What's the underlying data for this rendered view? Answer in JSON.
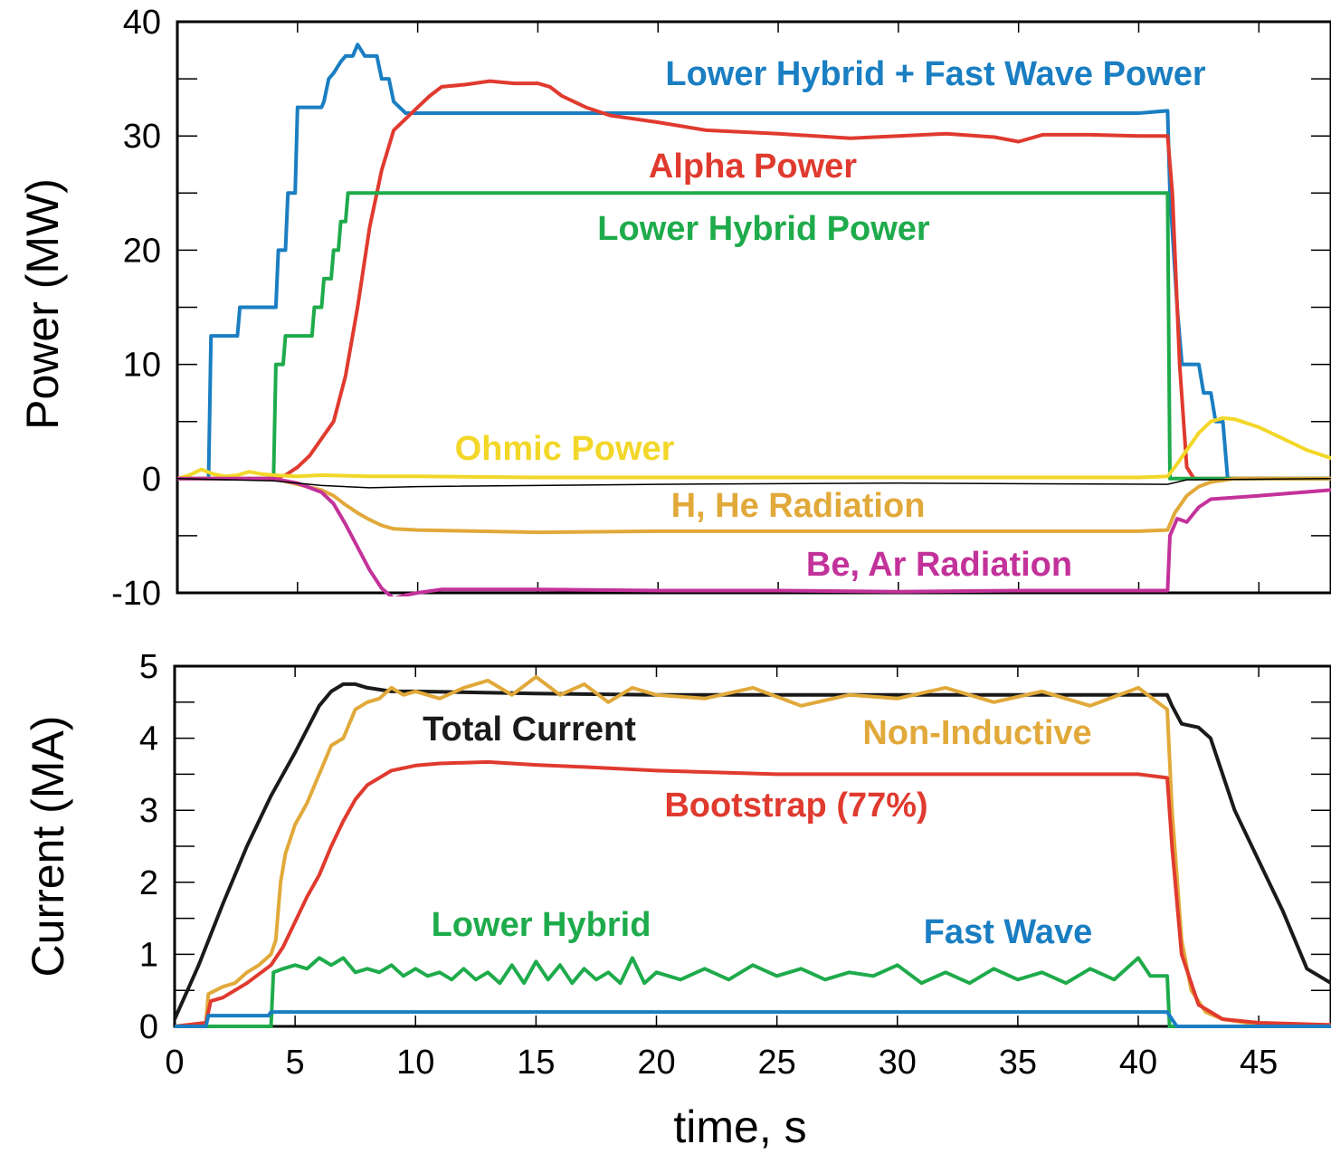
{
  "chart_data": [
    {
      "type": "line",
      "title": "",
      "xlabel": "",
      "ylabel": "Power (MW)",
      "xlim": [
        0,
        48
      ],
      "ylim": [
        -10,
        40
      ],
      "xticks": [
        0,
        5,
        10,
        15,
        20,
        25,
        30,
        35,
        40,
        45
      ],
      "yticks": [
        -10,
        0,
        10,
        20,
        30,
        40
      ],
      "grid": false,
      "series": [
        {
          "name": "Lower Hybrid + Fast Wave Power",
          "color": "#1a7ec2",
          "x": [
            0,
            1.3,
            1.4,
            2.5,
            2.6,
            4.1,
            4.2,
            4.5,
            4.6,
            4.9,
            5.0,
            6.0,
            6.1,
            6.3,
            6.5,
            6.8,
            7.0,
            7.3,
            7.5,
            7.8,
            8.0,
            8.3,
            8.5,
            8.8,
            9.0,
            9.5,
            10.0,
            15,
            20,
            25,
            30,
            35,
            40,
            41.2,
            41.3,
            41.6,
            41.8,
            42.0,
            42.5,
            42.7,
            43.0,
            43.2,
            43.5,
            43.7,
            48
          ],
          "y": [
            0,
            0,
            12.5,
            12.5,
            15,
            15,
            20,
            20,
            25,
            25,
            32.5,
            32.5,
            33,
            35,
            35.5,
            36.5,
            37,
            37,
            38,
            37,
            37,
            37,
            35,
            35,
            33,
            32,
            32,
            32,
            32,
            32,
            32,
            32,
            32,
            32.2,
            25,
            15,
            10,
            10,
            10,
            7.5,
            7.5,
            5,
            5,
            0,
            0
          ]
        },
        {
          "name": "Alpha Power",
          "color": "#e03a2f",
          "x": [
            0,
            4,
            4.5,
            5,
            5.5,
            6,
            6.5,
            7,
            7.5,
            8,
            8.5,
            9,
            9.5,
            10,
            10.5,
            11,
            12,
            13,
            14,
            15,
            15.5,
            16,
            17,
            18,
            20,
            22,
            25,
            28,
            30,
            32,
            34,
            35,
            36,
            38,
            40,
            41.2,
            41.4,
            41.7,
            42,
            42.3,
            42.6,
            48
          ],
          "y": [
            0,
            0,
            0.3,
            1,
            2,
            3.5,
            5,
            9,
            15,
            22,
            27,
            30.5,
            31.5,
            32.5,
            33.5,
            34.3,
            34.5,
            34.8,
            34.6,
            34.6,
            34.3,
            33.5,
            32.5,
            31.8,
            31.2,
            30.5,
            30.2,
            29.8,
            30,
            30.2,
            29.9,
            29.5,
            30.1,
            30.1,
            30,
            30,
            25,
            10,
            1,
            0,
            0,
            0
          ]
        },
        {
          "name": "Lower Hybrid Power",
          "color": "#1eab4b",
          "x": [
            0,
            4.0,
            4.1,
            4.4,
            4.5,
            4.9,
            5.0,
            5.6,
            5.7,
            6.0,
            6.1,
            6.4,
            6.5,
            6.7,
            6.8,
            7.0,
            7.1,
            7.4,
            7.5,
            41.2,
            41.3,
            48
          ],
          "y": [
            0,
            0,
            10,
            10,
            12.5,
            12.5,
            12.5,
            12.5,
            15,
            15,
            17.5,
            17.5,
            20,
            20,
            22.5,
            22.5,
            25,
            25,
            25,
            25,
            0,
            0
          ]
        },
        {
          "name": "Ohmic Power",
          "color": "#f3d728",
          "x": [
            0,
            0.5,
            1,
            1.5,
            2,
            2.5,
            3,
            3.5,
            4,
            5,
            6,
            8,
            10,
            15,
            20,
            25,
            30,
            35,
            40,
            41.2,
            41.5,
            42,
            42.5,
            43,
            43.5,
            44,
            45,
            46,
            47,
            48
          ],
          "y": [
            0,
            0.3,
            0.8,
            0.4,
            0.2,
            0.3,
            0.6,
            0.4,
            0.3,
            0.2,
            0.3,
            0.2,
            0.2,
            0.1,
            0.1,
            0.1,
            0.1,
            0.1,
            0.1,
            0.2,
            1,
            2.5,
            4,
            5,
            5.3,
            5.2,
            4.5,
            3.5,
            2.5,
            1.8
          ]
        },
        {
          "name": "H, He Radiation",
          "color": "#e1a93a",
          "x": [
            0,
            4,
            5,
            6,
            6.5,
            7,
            7.5,
            8,
            8.5,
            9,
            10,
            15,
            20,
            25,
            30,
            35,
            40,
            41.2,
            41.5,
            42,
            42.5,
            43,
            44,
            48
          ],
          "y": [
            0,
            0,
            -0.5,
            -1,
            -1.5,
            -2.3,
            -3,
            -3.6,
            -4.1,
            -4.4,
            -4.5,
            -4.7,
            -4.6,
            -4.6,
            -4.6,
            -4.6,
            -4.6,
            -4.5,
            -3,
            -1.5,
            -0.7,
            -0.3,
            0,
            0
          ]
        },
        {
          "name": "Be, Ar Radiation",
          "color": "#c3329a",
          "x": [
            0,
            4,
            5,
            6,
            6.5,
            7,
            7.5,
            8,
            8.5,
            9,
            9.5,
            10,
            11,
            15,
            20,
            25,
            30,
            35,
            40,
            41.2,
            41.3,
            41.6,
            42,
            42.5,
            43,
            45,
            48
          ],
          "y": [
            0,
            0,
            -0.4,
            -1.2,
            -2.2,
            -4,
            -6,
            -8,
            -9.6,
            -10.5,
            -10.2,
            -10,
            -9.7,
            -9.7,
            -9.8,
            -9.8,
            -9.9,
            -9.8,
            -9.8,
            -9.8,
            -5,
            -3.5,
            -3.8,
            -2.5,
            -1.8,
            -1.5,
            -1
          ]
        },
        {
          "name": "",
          "color": "#000000",
          "thin": true,
          "x": [
            0,
            4,
            6,
            8,
            10,
            20,
            30,
            41.2,
            42,
            48
          ],
          "y": [
            0,
            -0.2,
            -0.6,
            -0.8,
            -0.7,
            -0.5,
            -0.4,
            -0.5,
            -0.1,
            0
          ]
        }
      ],
      "annotations": [
        {
          "text": "Lower Hybrid + Fast Wave Power",
          "color": "#1a7ec2"
        },
        {
          "text": "Alpha Power",
          "color": "#e03a2f"
        },
        {
          "text": "Lower Hybrid Power",
          "color": "#1eab4b"
        },
        {
          "text": "Ohmic Power",
          "color": "#f3d728"
        },
        {
          "text": "H, He Radiation",
          "color": "#e1a93a"
        },
        {
          "text": "Be, Ar Radiation",
          "color": "#c3329a"
        }
      ]
    },
    {
      "type": "line",
      "title": "",
      "xlabel": "time, s",
      "ylabel": "Current (MA)",
      "xlim": [
        0,
        48
      ],
      "ylim": [
        0,
        5
      ],
      "xticks": [
        0,
        5,
        10,
        15,
        20,
        25,
        30,
        35,
        40,
        45
      ],
      "yticks": [
        0,
        1,
        2,
        3,
        4,
        5
      ],
      "grid": false,
      "series": [
        {
          "name": "Total Current",
          "color": "#1a1a1a",
          "x": [
            0,
            1,
            2,
            3,
            4,
            5,
            6,
            6.5,
            7,
            7.5,
            8,
            9,
            10,
            15,
            20,
            25,
            30,
            35,
            40,
            41.2,
            41.4,
            41.8,
            42.5,
            43,
            43.5,
            44,
            45,
            46,
            47,
            48
          ],
          "y": [
            0.1,
            0.85,
            1.7,
            2.5,
            3.2,
            3.8,
            4.45,
            4.65,
            4.75,
            4.75,
            4.7,
            4.65,
            4.65,
            4.62,
            4.6,
            4.6,
            4.6,
            4.6,
            4.6,
            4.6,
            4.45,
            4.2,
            4.15,
            4,
            3.5,
            3,
            2.3,
            1.6,
            0.8,
            0.6
          ]
        },
        {
          "name": "Non-Inductive",
          "color": "#e1a93a",
          "x": [
            0,
            1.3,
            1.4,
            2,
            2.5,
            3,
            3.5,
            4,
            4.2,
            4.4,
            4.6,
            5,
            5.5,
            6,
            6.5,
            7,
            7.5,
            8,
            8.5,
            9,
            9.5,
            10,
            11,
            12,
            13,
            14,
            15,
            16,
            17,
            18,
            19,
            20,
            22,
            24,
            26,
            28,
            30,
            32,
            34,
            36,
            38,
            40,
            41.0,
            41.2,
            41.4,
            41.8,
            42.2,
            42.8,
            43.5,
            44.5,
            46,
            48
          ],
          "y": [
            0,
            0.05,
            0.45,
            0.55,
            0.6,
            0.75,
            0.85,
            1.0,
            1.2,
            2.0,
            2.4,
            2.8,
            3.1,
            3.5,
            3.9,
            4.0,
            4.4,
            4.5,
            4.55,
            4.7,
            4.6,
            4.65,
            4.55,
            4.7,
            4.8,
            4.6,
            4.85,
            4.6,
            4.75,
            4.5,
            4.7,
            4.6,
            4.55,
            4.7,
            4.45,
            4.6,
            4.55,
            4.7,
            4.5,
            4.65,
            4.45,
            4.7,
            4.45,
            4.4,
            3.0,
            1.2,
            0.5,
            0.2,
            0.1,
            0.05,
            0.03,
            0.02
          ]
        },
        {
          "name": "Bootstrap (77%)",
          "color": "#e03a2f",
          "x": [
            0,
            1.3,
            1.5,
            2,
            3,
            4,
            4.5,
            5,
            5.5,
            6,
            6.5,
            7,
            7.5,
            8,
            9,
            10,
            11,
            13,
            15,
            17,
            20,
            25,
            30,
            35,
            40,
            41.2,
            41.4,
            41.8,
            42.5,
            43.5,
            45,
            48
          ],
          "y": [
            0,
            0.05,
            0.35,
            0.4,
            0.6,
            0.85,
            1.1,
            1.45,
            1.8,
            2.1,
            2.5,
            2.85,
            3.15,
            3.35,
            3.55,
            3.62,
            3.65,
            3.67,
            3.63,
            3.6,
            3.55,
            3.5,
            3.5,
            3.5,
            3.5,
            3.45,
            2.5,
            1.0,
            0.3,
            0.1,
            0.05,
            0.02
          ]
        },
        {
          "name": "Lower Hybrid",
          "color": "#1eab4b",
          "x": [
            0,
            4.0,
            4.1,
            4.5,
            5,
            5.5,
            6,
            6.5,
            7,
            7.5,
            8,
            8.5,
            9,
            9.5,
            10,
            10.5,
            11,
            11.5,
            12,
            12.5,
            13,
            13.5,
            14,
            14.5,
            15,
            15.5,
            16,
            16.5,
            17,
            17.5,
            18,
            18.5,
            19,
            19.5,
            20,
            21,
            22,
            23,
            24,
            25,
            26,
            27,
            28,
            29,
            30,
            31,
            32,
            33,
            34,
            35,
            36,
            37,
            38,
            39,
            40,
            40.5,
            41.2,
            41.3,
            48
          ],
          "y": [
            0,
            0,
            0.75,
            0.8,
            0.85,
            0.8,
            0.95,
            0.85,
            0.95,
            0.75,
            0.8,
            0.75,
            0.85,
            0.7,
            0.8,
            0.7,
            0.75,
            0.65,
            0.8,
            0.65,
            0.75,
            0.6,
            0.85,
            0.6,
            0.9,
            0.65,
            0.85,
            0.6,
            0.8,
            0.65,
            0.75,
            0.6,
            0.95,
            0.6,
            0.75,
            0.65,
            0.8,
            0.65,
            0.85,
            0.7,
            0.8,
            0.65,
            0.75,
            0.7,
            0.85,
            0.6,
            0.75,
            0.6,
            0.8,
            0.65,
            0.75,
            0.6,
            0.8,
            0.65,
            0.95,
            0.7,
            0.7,
            0,
            0
          ]
        },
        {
          "name": "Fast Wave",
          "color": "#1a7ec2",
          "x": [
            0,
            1.3,
            1.4,
            3.9,
            4.0,
            41.2,
            41.6,
            48
          ],
          "y": [
            0,
            0,
            0.15,
            0.15,
            0.2,
            0.2,
            0,
            0
          ]
        }
      ],
      "annotations": [
        {
          "text": "Total Current",
          "color": "#1a1a1a"
        },
        {
          "text": "Non-Inductive",
          "color": "#e1a93a"
        },
        {
          "text": "Bootstrap (77%)",
          "color": "#e03a2f"
        },
        {
          "text": "Lower Hybrid",
          "color": "#1eab4b"
        },
        {
          "text": "Fast Wave",
          "color": "#1a7ec2"
        }
      ]
    }
  ]
}
